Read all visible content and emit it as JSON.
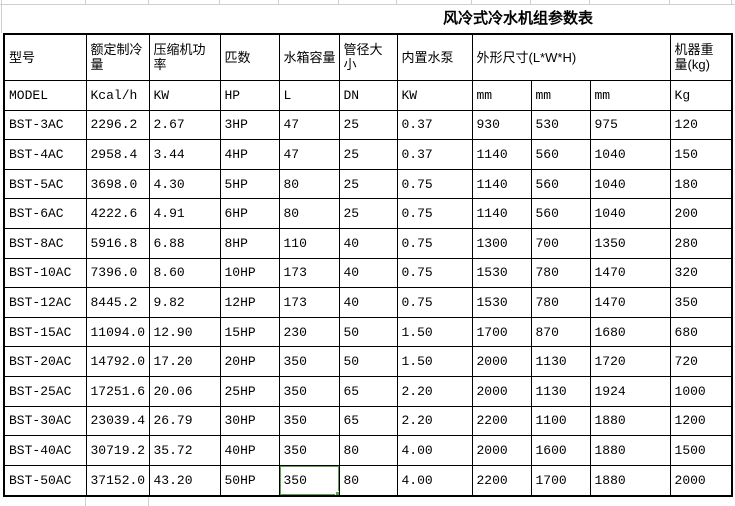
{
  "title": "风冷式冷水机组参数表",
  "selection": {
    "row_index": 12,
    "col_index": 4,
    "border_color": "#5ba150",
    "selected_value": "350"
  },
  "table": {
    "header_row1": [
      {
        "label": "型号",
        "colspan": 1
      },
      {
        "label": "额定制冷\n量",
        "colspan": 1
      },
      {
        "label": "压缩机功率",
        "colspan": 1
      },
      {
        "label": "匹数",
        "colspan": 1
      },
      {
        "label": "水箱容量",
        "colspan": 1
      },
      {
        "label": "管径大小",
        "colspan": 1
      },
      {
        "label": "内置水泵",
        "colspan": 1
      },
      {
        "label": "外形尺寸(L*W*H)",
        "colspan": 3,
        "align": "center"
      },
      {
        "label": "机器重\n量(kg)",
        "colspan": 1
      }
    ],
    "units_row": [
      "MODEL",
      "Kcal/h",
      "KW",
      "HP",
      "L",
      "DN",
      "KW",
      "mm",
      "mm",
      "mm",
      "Kg"
    ],
    "rows": [
      [
        "BST-3AC",
        "2296.2",
        "2.67",
        "3HP",
        "47",
        "25",
        "0.37",
        "930",
        "530",
        "975",
        "120"
      ],
      [
        "BST-4AC",
        "2958.4",
        "3.44",
        "4HP",
        "47",
        "25",
        "0.37",
        "1140",
        "560",
        "1040",
        "150"
      ],
      [
        "BST-5AC",
        "3698.0",
        "4.30",
        "5HP",
        "80",
        "25",
        "0.75",
        "1140",
        "560",
        "1040",
        "180"
      ],
      [
        "BST-6AC",
        "4222.6",
        "4.91",
        "6HP",
        "80",
        "25",
        "0.75",
        "1140",
        "560",
        "1040",
        "200"
      ],
      [
        "BST-8AC",
        "5916.8",
        "6.88",
        "8HP",
        "110",
        "40",
        "0.75",
        "1300",
        "700",
        "1350",
        "280"
      ],
      [
        "BST-10AC",
        "7396.0",
        "8.60",
        "10HP",
        "173",
        "40",
        "0.75",
        "1530",
        "780",
        "1470",
        "320"
      ],
      [
        "BST-12AC",
        "8445.2",
        "9.82",
        "12HP",
        "173",
        "40",
        "0.75",
        "1530",
        "780",
        "1470",
        "350"
      ],
      [
        "BST-15AC",
        "11094.0",
        "12.90",
        "15HP",
        "230",
        "50",
        "1.50",
        "1700",
        "870",
        "1680",
        "680"
      ],
      [
        "BST-20AC",
        "14792.0",
        "17.20",
        "20HP",
        "350",
        "50",
        "1.50",
        "2000",
        "1130",
        "1720",
        "720"
      ],
      [
        "BST-25AC",
        "17251.6",
        "20.06",
        "25HP",
        "350",
        "65",
        "2.20",
        "2000",
        "1130",
        "1924",
        "1000"
      ],
      [
        "BST-30AC",
        "23039.4",
        "26.79",
        "30HP",
        "350",
        "65",
        "2.20",
        "2200",
        "1100",
        "1880",
        "1200"
      ],
      [
        "BST-40AC",
        "30719.2",
        "35.72",
        "40HP",
        "350",
        "80",
        "4.00",
        "2000",
        "1600",
        "1880",
        "1500"
      ],
      [
        "BST-50AC",
        "37152.0",
        "43.20",
        "50HP",
        "350",
        "80",
        "4.00",
        "2200",
        "1700",
        "1880",
        "2000"
      ]
    ]
  }
}
